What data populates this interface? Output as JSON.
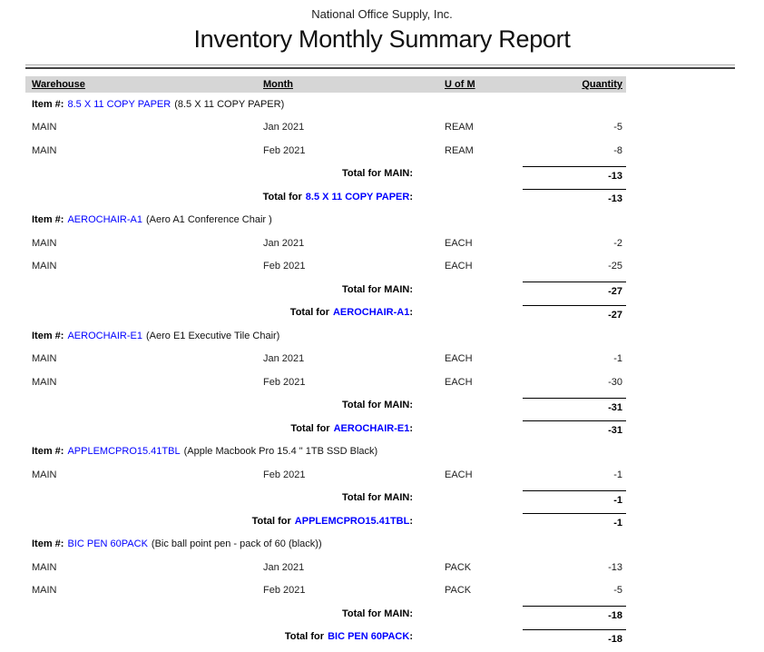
{
  "page": {
    "company": "National Office Supply, Inc.",
    "title": "Inventory Monthly Summary Report"
  },
  "columns": {
    "warehouse": "Warehouse",
    "month": "Month",
    "uom": "U of M",
    "quantity": "Quantity"
  },
  "labels": {
    "item_prefix": "Item #:",
    "total_for": "Total for",
    "colon": ":"
  },
  "colors": {
    "link_blue": "#0000ff",
    "header_band_gray": "#d6d6d6"
  },
  "items": [
    {
      "code": "8.5 X 11 COPY PAPER",
      "description": "(8.5 X 11 COPY PAPER)",
      "rows": [
        {
          "warehouse": "MAIN",
          "month": "Jan 2021",
          "uom": "REAM",
          "quantity": "-5"
        },
        {
          "warehouse": "MAIN",
          "month": "Feb 2021",
          "uom": "REAM",
          "quantity": "-8"
        }
      ],
      "warehouse_total_label": "Total for MAIN:",
      "warehouse_total": "-13",
      "item_total": "-13"
    },
    {
      "code": "AEROCHAIR-A1",
      "description": "(Aero A1 Conference Chair )",
      "rows": [
        {
          "warehouse": "MAIN",
          "month": "Jan 2021",
          "uom": "EACH",
          "quantity": "-2"
        },
        {
          "warehouse": "MAIN",
          "month": "Feb 2021",
          "uom": "EACH",
          "quantity": "-25"
        }
      ],
      "warehouse_total_label": "Total for MAIN:",
      "warehouse_total": "-27",
      "item_total": "-27"
    },
    {
      "code": "AEROCHAIR-E1",
      "description": "(Aero E1 Executive Tile Chair)",
      "rows": [
        {
          "warehouse": "MAIN",
          "month": "Jan 2021",
          "uom": "EACH",
          "quantity": "-1"
        },
        {
          "warehouse": "MAIN",
          "month": "Feb 2021",
          "uom": "EACH",
          "quantity": "-30"
        }
      ],
      "warehouse_total_label": "Total for MAIN:",
      "warehouse_total": "-31",
      "item_total": "-31"
    },
    {
      "code": "APPLEMCPRO15.41TBL",
      "description": "(Apple Macbook Pro 15.4 \" 1TB SSD Black)",
      "rows": [
        {
          "warehouse": "MAIN",
          "month": "Feb 2021",
          "uom": "EACH",
          "quantity": "-1"
        }
      ],
      "warehouse_total_label": "Total for MAIN:",
      "warehouse_total": "-1",
      "item_total": "-1"
    },
    {
      "code": "BIC PEN 60PACK",
      "description": "(Bic ball point pen - pack of 60 (black))",
      "rows": [
        {
          "warehouse": "MAIN",
          "month": "Jan 2021",
          "uom": "PACK",
          "quantity": "-13"
        },
        {
          "warehouse": "MAIN",
          "month": "Feb 2021",
          "uom": "PACK",
          "quantity": "-5"
        }
      ],
      "warehouse_total_label": "Total for MAIN:",
      "warehouse_total": "-18",
      "item_total": "-18"
    }
  ]
}
